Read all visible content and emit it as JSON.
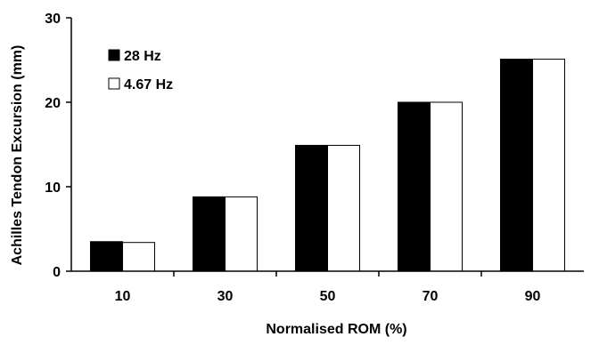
{
  "chart_data": {
    "type": "bar",
    "title": "",
    "xlabel": "Normalised ROM (%)",
    "ylabel": "Achilles Tendon Excursion (mm)",
    "categories": [
      "10",
      "30",
      "50",
      "70",
      "90"
    ],
    "series": [
      {
        "name": "28 Hz",
        "values": [
          3.5,
          8.8,
          14.9,
          20.0,
          25.1
        ],
        "color": "#000000"
      },
      {
        "name": "4.67 Hz",
        "values": [
          3.4,
          8.8,
          14.9,
          20.0,
          25.1
        ],
        "color": "#ffffff"
      }
    ],
    "ylim": [
      0,
      30
    ],
    "yticks": [
      "0",
      "10",
      "20",
      "30"
    ],
    "grid": false,
    "legend_position": "top-left"
  }
}
